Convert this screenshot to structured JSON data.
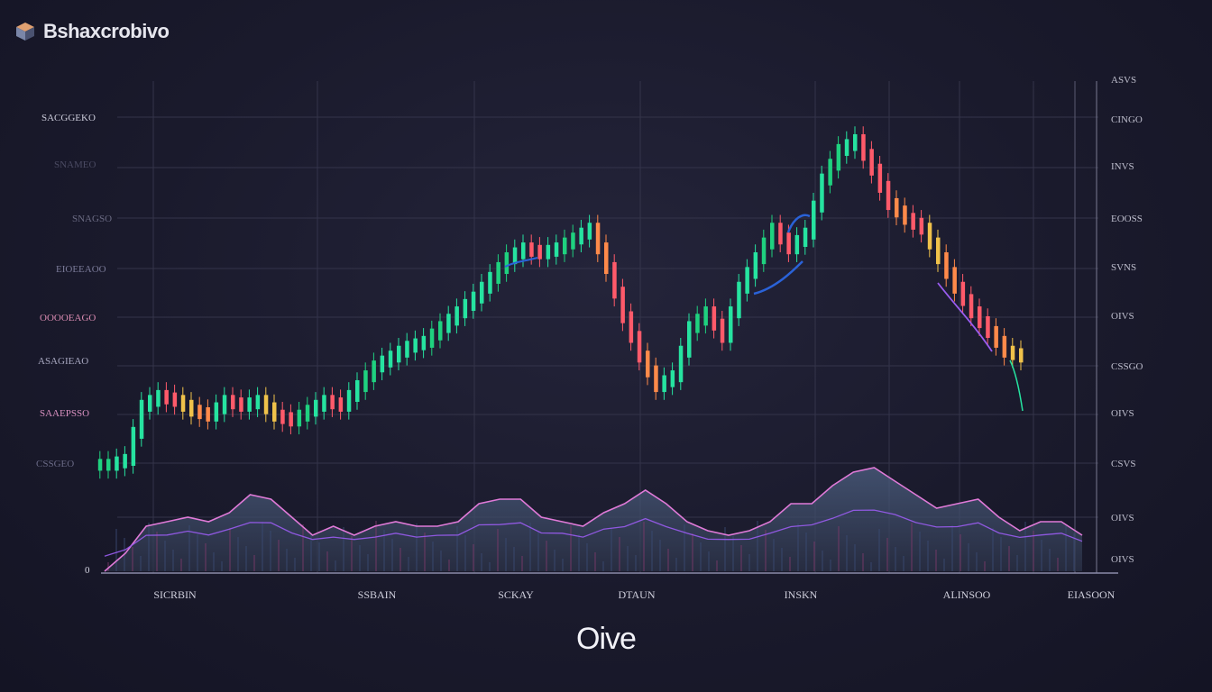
{
  "brand": {
    "name": "Bshaxcrobivo",
    "logo_icon": "cube-logo-icon"
  },
  "footer": {
    "text": "Oive"
  },
  "colors": {
    "up": "#26e3a0",
    "up_alt": "#1fd17f",
    "down": "#ff5a6a",
    "down_alt": "#ff8a4a",
    "neutral": "#f0c24a",
    "grid": "#34344a",
    "volume_line": "#e07ad8",
    "volume_fill": "#3d4a66",
    "volume_line_2": "#9a5cf0",
    "volume_line_3": "#c7e8ea"
  },
  "chart_data": {
    "type": "candlestick",
    "title": "",
    "y_labels_left": [
      "SACGGEKO",
      "SNAMEO",
      "SNAGSO",
      "EIOEEAOO",
      "OOOOEAGO",
      "ASAGIEAO",
      "SAAEPSSO",
      "CSSGEO",
      "0"
    ],
    "y_labels_right": [
      "ASVS",
      "CINGO",
      "INVS",
      "EOOSS",
      "SVNS",
      "OIVS",
      "CSSGO",
      "OIVS",
      "CSVS",
      "OIVS",
      "OIVS"
    ],
    "x_labels": [
      "SICRBIN",
      "SSBAIN",
      "SCKAY",
      "DTAUN",
      "INSKN",
      "ALINSOO",
      "EIASOON"
    ],
    "y_range": [
      0,
      100
    ],
    "grid": true,
    "price_series": [
      22,
      23,
      34,
      36,
      35,
      33,
      32,
      35,
      34,
      35,
      32,
      31,
      33,
      35,
      34,
      38,
      42,
      44,
      46,
      47,
      50,
      53,
      56,
      60,
      64,
      66,
      65,
      66,
      68,
      70,
      62,
      52,
      44,
      38,
      40,
      50,
      53,
      48,
      58,
      64,
      70,
      66,
      69,
      80,
      86,
      88,
      82,
      75,
      72,
      70,
      64,
      58,
      53,
      49,
      45,
      44
    ],
    "volume_series": {
      "name": "",
      "values": [
        0,
        4,
        10,
        11,
        12,
        11,
        13,
        17,
        16,
        12,
        8,
        10,
        8,
        10,
        11,
        10,
        10,
        11,
        15,
        16,
        16,
        12,
        11,
        10,
        13,
        15,
        18,
        15,
        11,
        9,
        8,
        9,
        11,
        15,
        15,
        19,
        22,
        23,
        20,
        17,
        14,
        15,
        16,
        12,
        9,
        11,
        11,
        8
      ]
    }
  }
}
